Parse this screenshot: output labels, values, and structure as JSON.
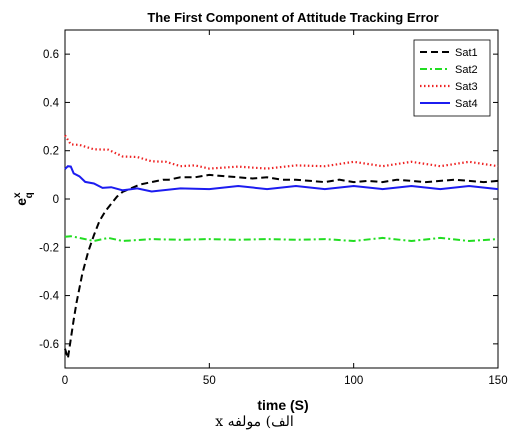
{
  "chart_data": {
    "type": "line",
    "title": "The First Component of Attitude Tracking Error",
    "xlabel": "time (S)",
    "ylabel_base": "e",
    "ylabel_sup": "x",
    "ylabel_sub": "q",
    "xlim": [
      0,
      150
    ],
    "ylim": [
      -0.7,
      0.7
    ],
    "xticks": [
      0,
      50,
      100,
      150
    ],
    "yticks": [
      -0.6,
      -0.4,
      -0.2,
      0,
      0.2,
      0.4,
      0.6
    ],
    "grid": false,
    "legend_position": "top-right",
    "series": [
      {
        "name": "Sat1",
        "color": "#000000",
        "style": "dashed",
        "x": [
          0,
          1,
          2,
          3,
          4,
          5,
          6,
          8,
          10,
          12,
          14,
          16,
          18,
          20,
          22,
          24,
          26,
          28,
          30,
          32,
          34,
          36,
          40,
          45,
          50,
          55,
          60,
          65,
          70,
          75,
          80,
          85,
          90,
          95,
          100,
          105,
          110,
          115,
          120,
          125,
          130,
          135,
          140,
          145,
          150
        ],
        "y": [
          -0.62,
          -0.66,
          -0.58,
          -0.5,
          -0.43,
          -0.37,
          -0.31,
          -0.22,
          -0.15,
          -0.09,
          -0.05,
          -0.02,
          0.01,
          0.03,
          0.04,
          0.05,
          0.06,
          0.065,
          0.07,
          0.075,
          0.08,
          0.08,
          0.09,
          0.09,
          0.1,
          0.095,
          0.09,
          0.085,
          0.09,
          0.08,
          0.08,
          0.075,
          0.07,
          0.08,
          0.07,
          0.075,
          0.07,
          0.08,
          0.075,
          0.07,
          0.075,
          0.08,
          0.075,
          0.07,
          0.075
        ]
      },
      {
        "name": "Sat2",
        "color": "#22dd22",
        "style": "dashdot",
        "x": [
          0,
          2,
          5,
          10,
          15,
          20,
          30,
          40,
          50,
          60,
          70,
          80,
          90,
          100,
          110,
          120,
          130,
          140,
          150
        ],
        "y": [
          -0.16,
          -0.15,
          -0.165,
          -0.17,
          -0.165,
          -0.17,
          -0.17,
          -0.165,
          -0.17,
          -0.165,
          -0.17,
          -0.165,
          -0.17,
          -0.17,
          -0.165,
          -0.17,
          -0.165,
          -0.17,
          -0.17
        ]
      },
      {
        "name": "Sat3",
        "color": "#ee2222",
        "style": "dotted",
        "x": [
          0,
          2,
          5,
          10,
          15,
          20,
          25,
          30,
          35,
          40,
          45,
          50,
          60,
          70,
          80,
          90,
          100,
          110,
          120,
          130,
          140,
          150
        ],
        "y": [
          0.26,
          0.23,
          0.22,
          0.21,
          0.2,
          0.18,
          0.17,
          0.16,
          0.15,
          0.14,
          0.135,
          0.13,
          0.13,
          0.13,
          0.135,
          0.14,
          0.15,
          0.14,
          0.15,
          0.14,
          0.15,
          0.14
        ]
      },
      {
        "name": "Sat4",
        "color": "#1c1cf0",
        "style": "solid",
        "x": [
          0,
          1,
          2,
          3,
          5,
          7,
          10,
          13,
          16,
          20,
          25,
          30,
          40,
          50,
          60,
          70,
          80,
          90,
          100,
          110,
          120,
          130,
          140,
          150
        ],
        "y": [
          0.12,
          0.14,
          0.13,
          0.11,
          0.09,
          0.075,
          0.06,
          0.05,
          0.045,
          0.04,
          0.04,
          0.035,
          0.04,
          0.045,
          0.05,
          0.045,
          0.05,
          0.045,
          0.05,
          0.045,
          0.05,
          0.045,
          0.05,
          0.045
        ]
      }
    ]
  },
  "caption": "الف) مولفه x"
}
